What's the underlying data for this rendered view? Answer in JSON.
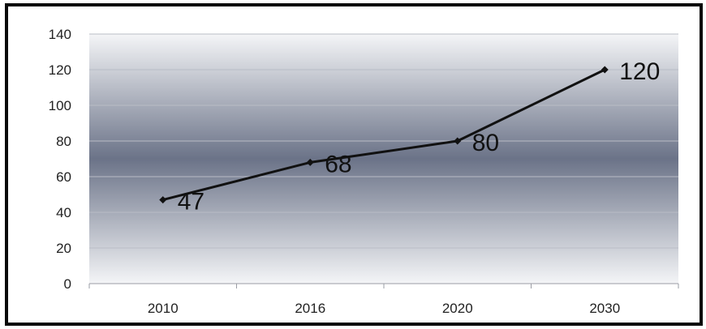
{
  "chart_data": {
    "type": "line",
    "categories": [
      "2010",
      "2016",
      "2020",
      "2030"
    ],
    "series": [
      {
        "values": [
          47,
          68,
          80,
          120
        ]
      }
    ],
    "data_labels": [
      "47",
      "68",
      "80",
      "120"
    ],
    "ylim": [
      0,
      140
    ],
    "yticks": [
      "0",
      "20",
      "40",
      "60",
      "80",
      "100",
      "120",
      "140"
    ],
    "title": "",
    "xlabel": "",
    "ylabel": "",
    "grid": "horizontal",
    "legend": "none",
    "colors": {
      "line": "#111111",
      "gridline": "#b9bcc6",
      "background_light": "#f4f5f7",
      "background_dark": "#6b7388",
      "frame": "#0a0a0a"
    }
  }
}
